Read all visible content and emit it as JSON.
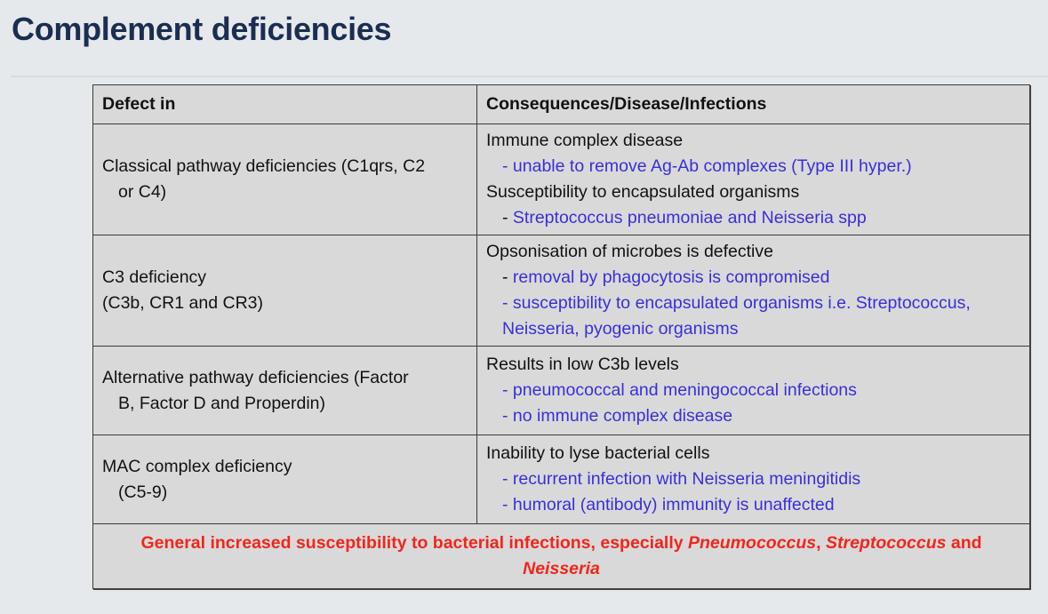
{
  "page": {
    "title": "Complement deficiencies"
  },
  "table": {
    "headers": [
      "Defect in",
      "Consequences/Disease/Infections"
    ],
    "rows": [
      {
        "defect_line1": "Classical pathway deficiencies (C1qrs, C2",
        "defect_line2": "or C4)",
        "consequences": [
          {
            "type": "main",
            "text": "Immune complex disease"
          },
          {
            "type": "sub",
            "dash": "- ",
            "text": "unable to remove Ag-Ab complexes (Type III hyper.)",
            "dash_blue": true
          },
          {
            "type": "main",
            "text": "Susceptibility to encapsulated organisms"
          },
          {
            "type": "sub",
            "dash": "- ",
            "text": "Streptococcus pneumoniae and Neisseria spp",
            "dash_blue": false
          }
        ]
      },
      {
        "defect_line1": "C3 deficiency",
        "defect_line2": "(C3b, CR1 and CR3)",
        "consequences": [
          {
            "type": "main",
            "text": "Opsonisation of microbes is defective"
          },
          {
            "type": "sub",
            "dash": "- ",
            "text": "removal by phagocytosis is compromised",
            "dash_blue": false
          },
          {
            "type": "sub",
            "dash": "- ",
            "text": "susceptibility to encapsulated organisms i.e. Streptococcus,",
            "dash_blue": true
          },
          {
            "type": "sub",
            "dash": "",
            "text": "Neisseria, pyogenic organisms",
            "dash_blue": true
          }
        ]
      },
      {
        "defect_line1": "Alternative pathway deficiencies (Factor",
        "defect_line2": "B, Factor D and Properdin)",
        "consequences": [
          {
            "type": "main",
            "text": "Results in low C3b levels"
          },
          {
            "type": "sub",
            "dash": "- ",
            "text": "pneumococcal and meningococcal infections",
            "dash_blue": true
          },
          {
            "type": "sub",
            "dash": "- ",
            "text": "no immune complex disease",
            "dash_blue": true
          }
        ]
      },
      {
        "defect_line1": "MAC complex deficiency",
        "defect_line2": "(C5-9)",
        "consequences": [
          {
            "type": "main",
            "text": "Inability to lyse bacterial cells"
          },
          {
            "type": "sub",
            "dash": "- ",
            "text": "recurrent infection with Neisseria meningitidis",
            "dash_blue": true
          },
          {
            "type": "sub",
            "dash": "- ",
            "text": "humoral (antibody) immunity is unaffected",
            "dash_blue": true
          }
        ]
      }
    ],
    "footer": {
      "prefix": "General increased susceptibility to bacterial infections, especially ",
      "org1": "Pneumococcus",
      "sep": ", ",
      "org2": "Streptococcus",
      "and": " and",
      "org3": "Neisseria"
    }
  },
  "colors": {
    "background": "#e6e9ec",
    "title": "#1a2e52",
    "table_bg": "#d9d9d9",
    "sub_text_blue": "#3a2ed8",
    "footer_red": "#f0261d"
  }
}
